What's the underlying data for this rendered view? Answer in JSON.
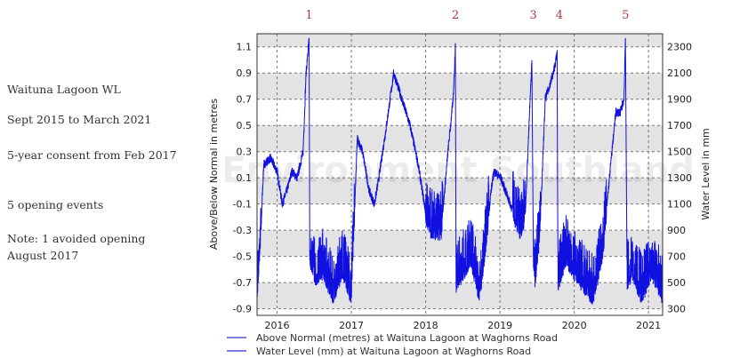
{
  "notes": {
    "title": "Waituna Lagoon WL",
    "period": "Sept 2015 to March 2021",
    "consent": "5-year consent from Feb 2017",
    "events": "5 opening events",
    "note_line1": "Note:  1 avoided opening",
    "note_line2": "August 2017"
  },
  "event_markers": [
    {
      "label": "1",
      "year": 2016.43
    },
    {
      "label": "2",
      "year": 2018.4
    },
    {
      "label": "3",
      "year": 2019.45
    },
    {
      "label": "4",
      "year": 2019.8
    },
    {
      "label": "5",
      "year": 2020.69
    }
  ],
  "colors": {
    "series": "#1010e0",
    "event": "#b03a3a",
    "band": "#e3e3e3"
  },
  "chart_data": {
    "type": "line",
    "ylabel": "Above/Below Normal in metres",
    "y2label": "Water Level in mm",
    "watermark": "Environment Southland",
    "xlim": [
      2015.73,
      2021.19
    ],
    "ylim": [
      -0.95,
      1.2
    ],
    "xticks": [
      2016,
      2017,
      2018,
      2019,
      2020,
      2021
    ],
    "yticks": [
      -0.9,
      -0.7,
      -0.5,
      -0.3,
      -0.1,
      0.1,
      0.3,
      0.5,
      0.7,
      0.9,
      1.1
    ],
    "y2ticks": [
      300,
      500,
      700,
      900,
      1100,
      1300,
      1500,
      1700,
      1900,
      2100,
      2300
    ],
    "grid": true,
    "legend": "bottom-left",
    "series": [
      {
        "name": "Above Normal (metres) at Waituna Lagoon at Waghorns Road",
        "x": [
          2015.73,
          2015.78,
          2015.82,
          2015.91,
          2016.0,
          2016.07,
          2016.13,
          2016.2,
          2016.27,
          2016.35,
          2016.39,
          2016.43,
          2016.44,
          2016.51,
          2016.62,
          2016.75,
          2016.88,
          2017.0,
          2017.04,
          2017.08,
          2017.15,
          2017.24,
          2017.31,
          2017.37,
          2017.46,
          2017.57,
          2017.68,
          2017.79,
          2017.9,
          2018.01,
          2018.08,
          2018.21,
          2018.3,
          2018.37,
          2018.4,
          2018.41,
          2018.52,
          2018.61,
          2018.72,
          2018.79,
          2018.88,
          2018.92,
          2019.01,
          2019.14,
          2019.27,
          2019.34,
          2019.38,
          2019.43,
          2019.45,
          2019.47,
          2019.54,
          2019.61,
          2019.72,
          2019.77,
          2019.78,
          2019.89,
          2019.98,
          2020.12,
          2020.25,
          2020.38,
          2020.49,
          2020.56,
          2020.62,
          2020.67,
          2020.69,
          2020.71,
          2020.78,
          2020.91,
          2021.04,
          2021.19
        ],
        "y": [
          -0.8,
          -0.3,
          0.2,
          0.25,
          0.15,
          -0.1,
          0.0,
          0.15,
          0.1,
          0.3,
          0.9,
          1.15,
          -0.5,
          -0.65,
          -0.6,
          -0.8,
          -0.6,
          -0.8,
          -0.2,
          0.4,
          0.3,
          0.0,
          -0.1,
          0.1,
          0.45,
          0.9,
          0.7,
          0.5,
          0.2,
          -0.2,
          -0.3,
          -0.3,
          0.3,
          0.7,
          1.1,
          -0.7,
          -0.6,
          -0.5,
          -0.8,
          -0.5,
          0.0,
          0.15,
          0.1,
          -0.1,
          -0.3,
          -0.2,
          0.35,
          1.0,
          -0.5,
          -0.7,
          -0.3,
          0.7,
          0.9,
          1.05,
          -0.7,
          -0.5,
          -0.6,
          -0.7,
          -0.8,
          -0.5,
          0.2,
          0.6,
          0.6,
          0.7,
          1.2,
          -0.7,
          -0.6,
          -0.8,
          -0.6,
          -0.8
        ]
      },
      {
        "name": "Water Level (mm) at Waituna Lagoon at Waghorns Road"
      }
    ]
  }
}
